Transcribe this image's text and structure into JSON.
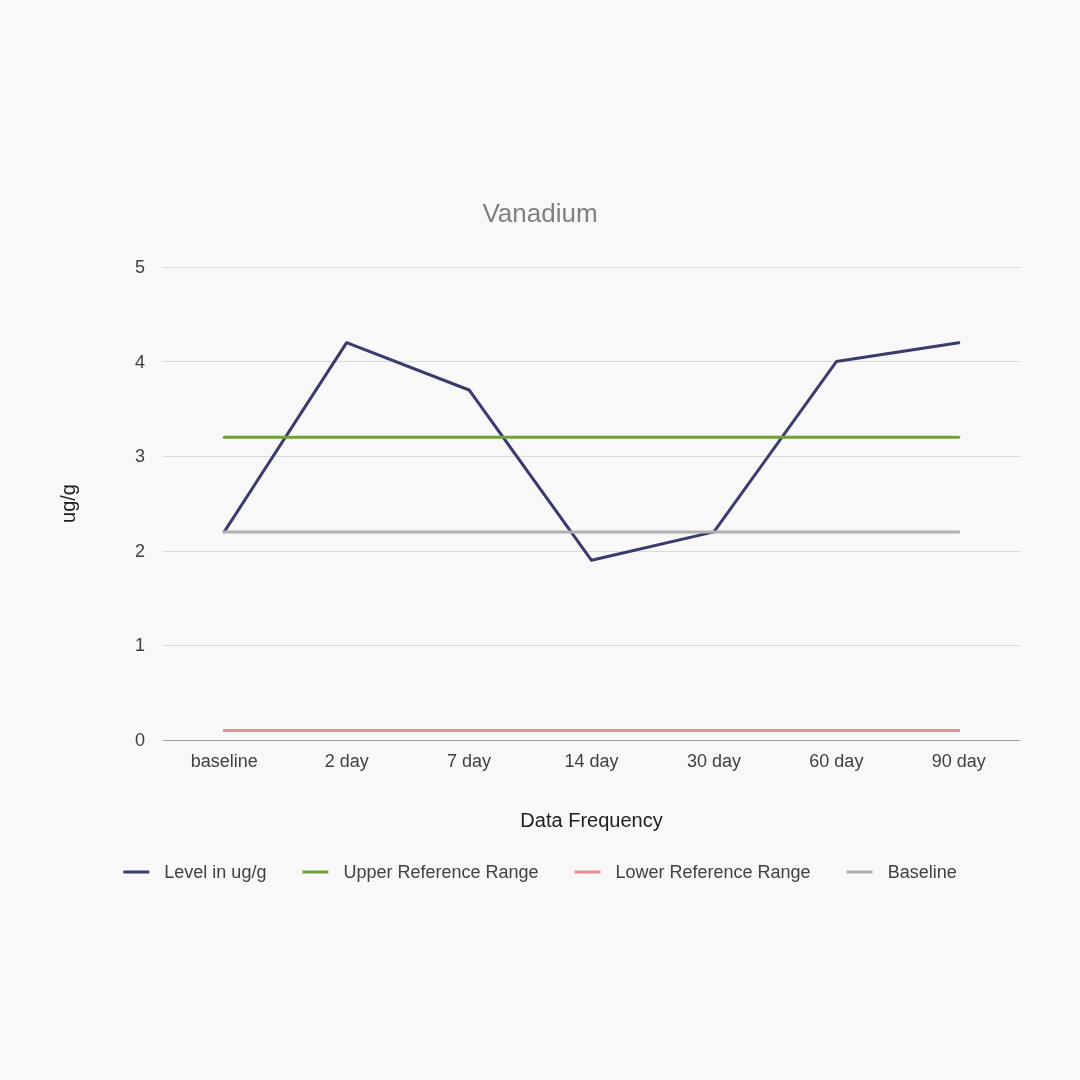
{
  "chart_data": {
    "type": "line",
    "title": "Vanadium",
    "xlabel": "Data Frequency",
    "ylabel": "ug/g",
    "categories": [
      "baseline",
      "2 day",
      "7 day",
      "14 day",
      "30 day",
      "60 day",
      "90 day"
    ],
    "series": [
      {
        "name": "Level in ug/g",
        "color": "#3b3a6e",
        "values": [
          2.2,
          4.2,
          3.7,
          1.9,
          2.2,
          4.0,
          4.2
        ]
      },
      {
        "name": "Upper Reference Range",
        "color": "#70a03c",
        "values": [
          3.2,
          3.2,
          3.2,
          3.2,
          3.2,
          3.2,
          3.2
        ]
      },
      {
        "name": "Lower Reference Range",
        "color": "#e89090",
        "values": [
          0.1,
          0.1,
          0.1,
          0.1,
          0.1,
          0.1,
          0.1
        ]
      },
      {
        "name": "Baseline",
        "color": "#b0b0b0",
        "values": [
          2.2,
          2.2,
          2.2,
          2.2,
          2.2,
          2.2,
          2.2
        ]
      }
    ],
    "ylim": [
      0,
      5
    ],
    "yticks": [
      0,
      1,
      2,
      3,
      4,
      5
    ],
    "grid": "y",
    "legend": "bottom",
    "marker": "none",
    "line_style": "solid"
  }
}
